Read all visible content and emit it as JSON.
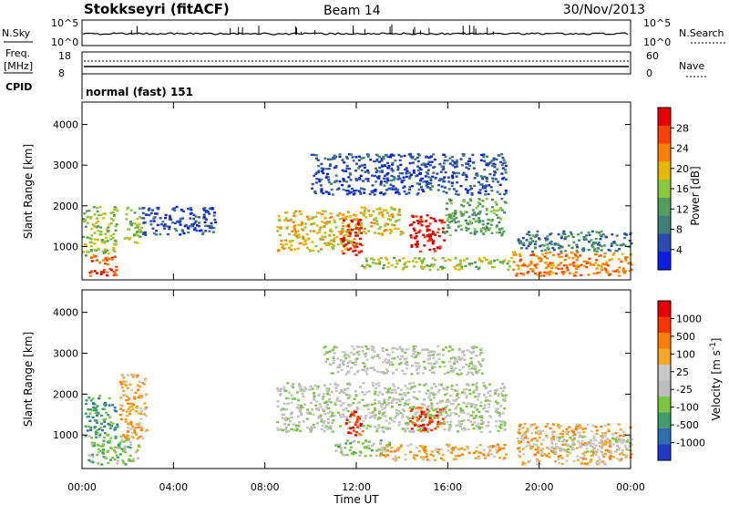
{
  "header": {
    "station": "Stokkseyri (fitACF)",
    "beam": "Beam 14",
    "date": "30/Nov/2013"
  },
  "top_panels": {
    "nsky_label": "N.Sky",
    "nsky_ticks": [
      "10^5",
      "10^0"
    ],
    "nsearch_label": "N.Search",
    "nsearch_ticks": [
      "10^5",
      "10^0"
    ],
    "freq_label": "Freq.",
    "freq_unit": "[MHz]",
    "freq_ticks": [
      "18",
      "8"
    ],
    "nave_label": "Nave",
    "nave_ticks": [
      "60",
      "0"
    ],
    "cpid_label": "CPID",
    "cpid_value": "normal (fast) 151"
  },
  "colors": {
    "power_scale": [
      "#0a1ee6",
      "#2a4ab4",
      "#3f7f79",
      "#4fa05a",
      "#8ac83c",
      "#e6b800",
      "#ff7f00",
      "#ff4000",
      "#e60000"
    ],
    "velocity_scale": [
      "#1e3cc8",
      "#2e6fb4",
      "#3c9f6e",
      "#7cc83c",
      "#bebebe",
      "#c8c8c8",
      "#f5a623",
      "#ff7f00",
      "#ff3300",
      "#e60000"
    ]
  },
  "chart_data": [
    {
      "type": "heatmap",
      "panel": "power",
      "x": [
        "00:00",
        "04:00",
        "08:00",
        "12:00",
        "16:00",
        "20:00",
        "00:00"
      ],
      "xlim_hours": [
        0,
        24
      ],
      "ylabel": "Slant Range [km]",
      "y_ticks": [
        "4000",
        "3000",
        "2000",
        "1000"
      ],
      "ylim_km": [
        180,
        4550
      ],
      "colorbar_label": "Power [dB]",
      "colorbar_ticks": [
        "28",
        "24",
        "20",
        "16",
        "12",
        "8",
        "4"
      ],
      "regions": [
        {
          "t0": 0.0,
          "t1": 1.5,
          "r0": 800,
          "r1": 2000,
          "level": 4
        },
        {
          "t0": 0.3,
          "t1": 1.5,
          "r0": 300,
          "r1": 800,
          "level": 7
        },
        {
          "t0": 1.8,
          "t1": 2.6,
          "r0": 1100,
          "r1": 2000,
          "level": 4
        },
        {
          "t0": 2.6,
          "t1": 5.8,
          "r0": 1300,
          "r1": 2000,
          "level": 1
        },
        {
          "t0": 8.5,
          "t1": 12.0,
          "r0": 900,
          "r1": 1900,
          "level": 5
        },
        {
          "t0": 11.3,
          "t1": 12.2,
          "r0": 800,
          "r1": 1700,
          "level": 8
        },
        {
          "t0": 12.0,
          "t1": 14.0,
          "r0": 1300,
          "r1": 2000,
          "level": 5
        },
        {
          "t0": 14.3,
          "t1": 15.8,
          "r0": 900,
          "r1": 1800,
          "level": 8
        },
        {
          "t0": 15.8,
          "t1": 18.5,
          "r0": 1300,
          "r1": 2200,
          "level": 3
        },
        {
          "t0": 12.2,
          "t1": 18.8,
          "r0": 450,
          "r1": 750,
          "level": 4
        },
        {
          "t0": 10.0,
          "t1": 18.5,
          "r0": 2300,
          "r1": 3300,
          "level": 1
        },
        {
          "t0": 18.8,
          "t1": 24.0,
          "r0": 300,
          "r1": 900,
          "level": 6
        },
        {
          "t0": 19.0,
          "t1": 24.0,
          "r0": 900,
          "r1": 1400,
          "level": 2
        }
      ]
    },
    {
      "type": "heatmap",
      "panel": "velocity",
      "x": [
        "00:00",
        "04:00",
        "08:00",
        "12:00",
        "16:00",
        "20:00",
        "00:00"
      ],
      "xlabel": "Time UT",
      "xlim_hours": [
        0,
        24
      ],
      "ylabel": "Slant Range [km]",
      "y_ticks": [
        "4000",
        "3000",
        "2000",
        "1000"
      ],
      "ylim_km": [
        180,
        4550
      ],
      "colorbar_label": "Velocity [m s^-1]",
      "colorbar_ticks": [
        "1000",
        "500",
        "100",
        "25",
        "-25",
        "-100",
        "-500",
        "-1000"
      ],
      "regions": [
        {
          "t0": 0.1,
          "t1": 1.5,
          "r0": 1000,
          "r1": 2000,
          "level": 2
        },
        {
          "t0": 0.2,
          "t1": 2.5,
          "r0": 300,
          "r1": 1000,
          "level": 3
        },
        {
          "t0": 1.6,
          "t1": 2.8,
          "r0": 900,
          "r1": 2500,
          "level": 6
        },
        {
          "t0": 8.5,
          "t1": 18.5,
          "r0": 1100,
          "r1": 2300,
          "level": 4
        },
        {
          "t0": 10.5,
          "t1": 17.5,
          "r0": 2500,
          "r1": 3200,
          "level": 4
        },
        {
          "t0": 11.5,
          "t1": 12.3,
          "r0": 1000,
          "r1": 1600,
          "level": 8
        },
        {
          "t0": 14.3,
          "t1": 15.8,
          "r0": 1100,
          "r1": 1700,
          "level": 8
        },
        {
          "t0": 11.0,
          "t1": 13.5,
          "r0": 500,
          "r1": 900,
          "level": 3
        },
        {
          "t0": 13.0,
          "t1": 18.5,
          "r0": 400,
          "r1": 800,
          "level": 6
        },
        {
          "t0": 19.0,
          "t1": 24.0,
          "r0": 300,
          "r1": 1300,
          "level": 6
        },
        {
          "t0": 20.5,
          "t1": 24.0,
          "r0": 600,
          "r1": 1000,
          "level": 4
        }
      ]
    }
  ]
}
